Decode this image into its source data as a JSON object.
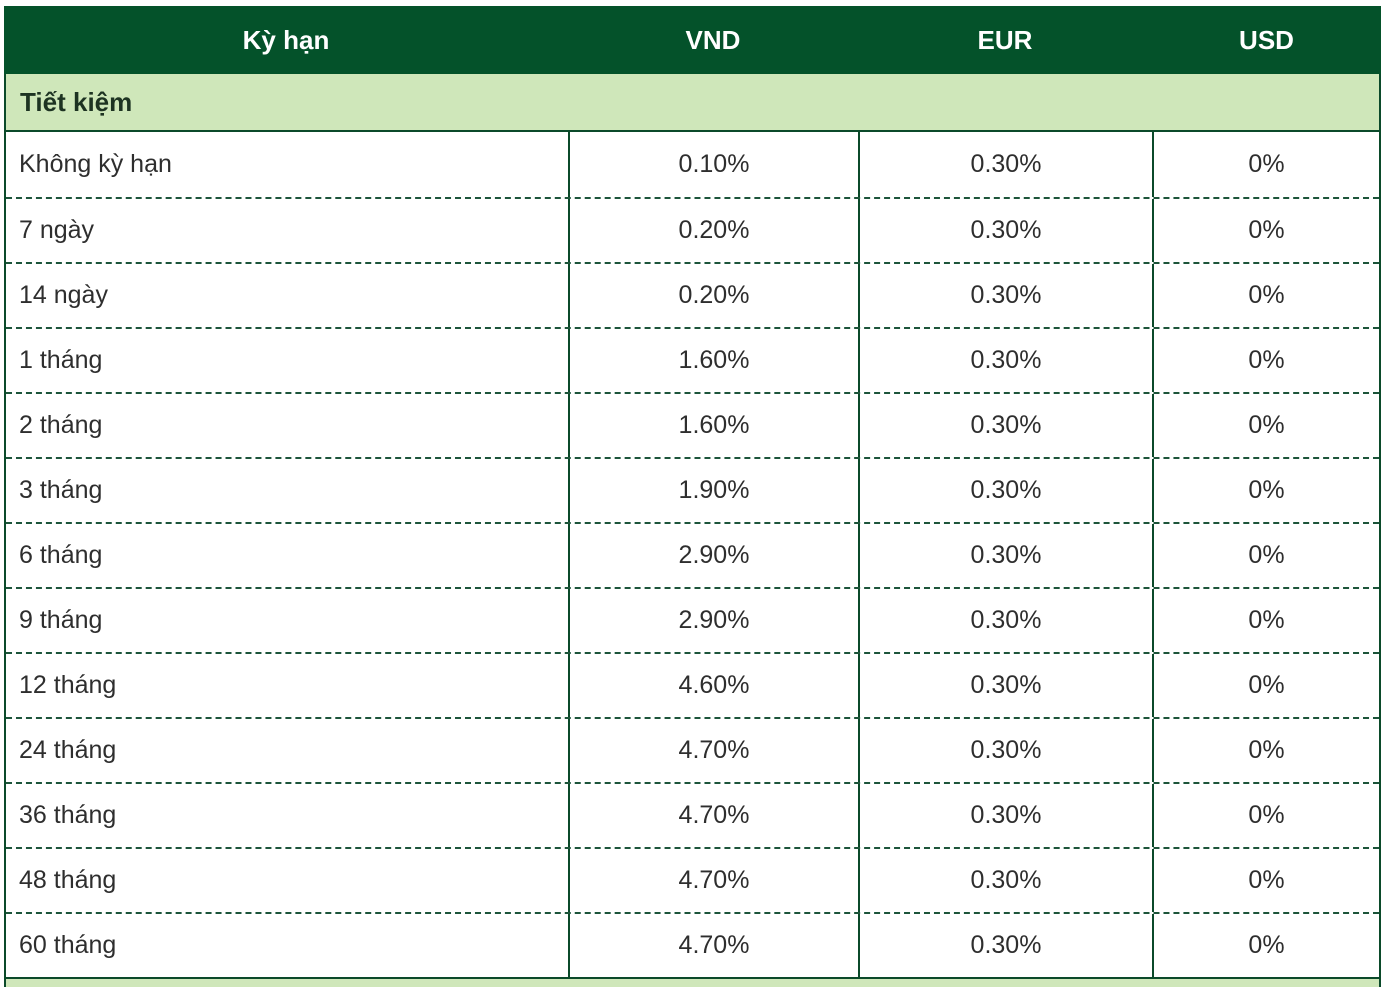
{
  "table": {
    "columns": [
      {
        "label": "Kỳ hạn"
      },
      {
        "label": "VND"
      },
      {
        "label": "EUR"
      },
      {
        "label": "USD"
      }
    ],
    "section_title": "Tiết kiệm",
    "rows": [
      {
        "term": "Không kỳ hạn",
        "vnd": "0.10%",
        "eur": "0.30%",
        "usd": "0%"
      },
      {
        "term": "7 ngày",
        "vnd": "0.20%",
        "eur": "0.30%",
        "usd": "0%"
      },
      {
        "term": "14 ngày",
        "vnd": "0.20%",
        "eur": "0.30%",
        "usd": "0%"
      },
      {
        "term": "1 tháng",
        "vnd": "1.60%",
        "eur": "0.30%",
        "usd": "0%"
      },
      {
        "term": "2 tháng",
        "vnd": "1.60%",
        "eur": "0.30%",
        "usd": "0%"
      },
      {
        "term": "3 tháng",
        "vnd": "1.90%",
        "eur": "0.30%",
        "usd": "0%"
      },
      {
        "term": "6 tháng",
        "vnd": "2.90%",
        "eur": "0.30%",
        "usd": "0%"
      },
      {
        "term": "9 tháng",
        "vnd": "2.90%",
        "eur": "0.30%",
        "usd": "0%"
      },
      {
        "term": "12 tháng",
        "vnd": "4.60%",
        "eur": "0.30%",
        "usd": "0%"
      },
      {
        "term": "24 tháng",
        "vnd": "4.70%",
        "eur": "0.30%",
        "usd": "0%"
      },
      {
        "term": "36 tháng",
        "vnd": "4.70%",
        "eur": "0.30%",
        "usd": "0%"
      },
      {
        "term": "48 tháng",
        "vnd": "4.70%",
        "eur": "0.30%",
        "usd": "0%"
      },
      {
        "term": "60 tháng",
        "vnd": "4.70%",
        "eur": "0.30%",
        "usd": "0%"
      }
    ],
    "colors": {
      "header_bg": "#04522a",
      "header_text": "#ffffff",
      "section_bg": "#cfe7ba",
      "section_text": "#1d3322",
      "border_solid": "#0b4a2a",
      "border_dashed": "#1c543a",
      "cell_text": "#2e2e2e"
    }
  }
}
